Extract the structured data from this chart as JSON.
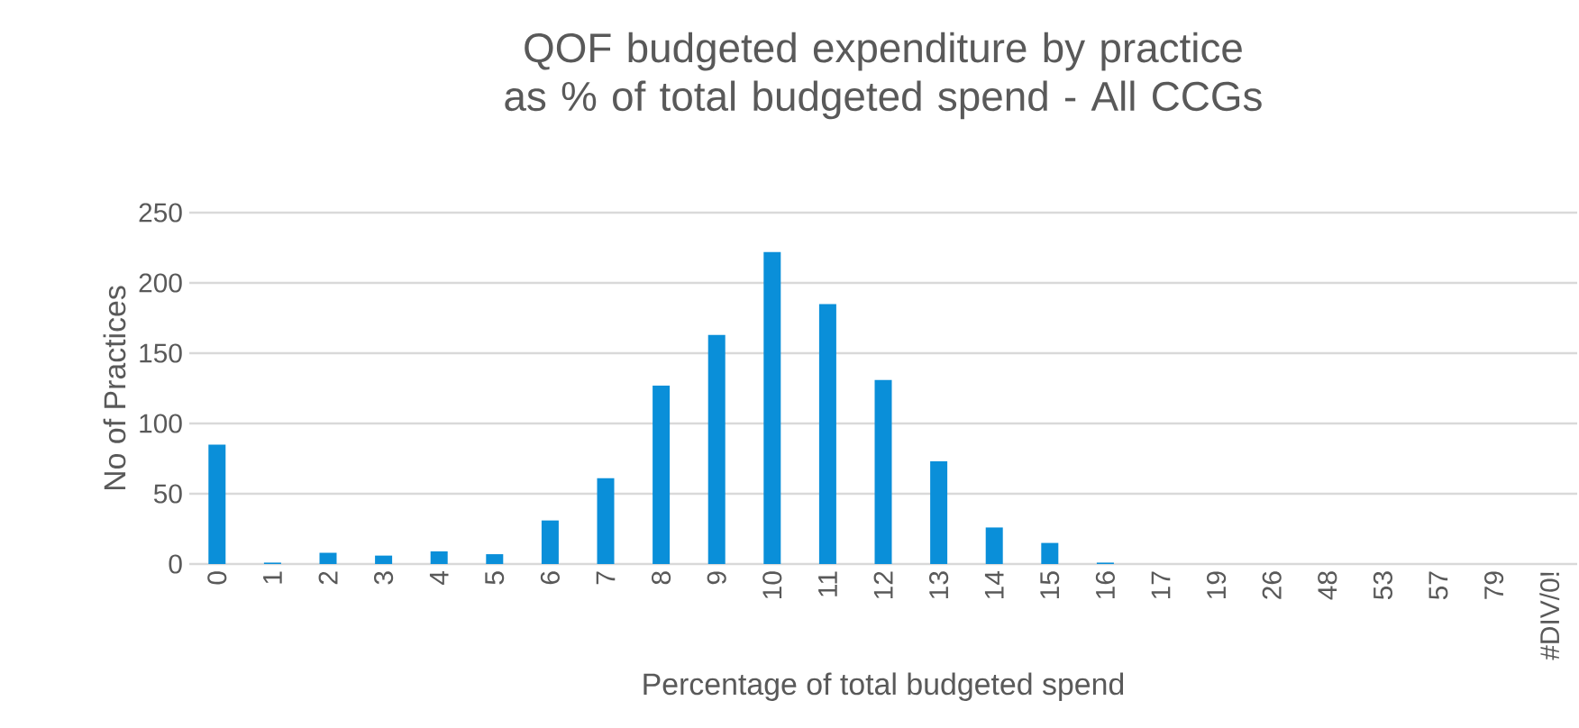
{
  "chart_data": {
    "type": "bar",
    "title": "QOF budgeted expenditure by practice as % of total budgeted spend - All CCGs",
    "xlabel": "Percentage of total budgeted spend",
    "ylabel": "No of Practices",
    "categories": [
      "0",
      "1",
      "2",
      "3",
      "4",
      "5",
      "6",
      "7",
      "8",
      "9",
      "10",
      "11",
      "12",
      "13",
      "14",
      "15",
      "16",
      "17",
      "19",
      "26",
      "48",
      "53",
      "57",
      "79",
      "#DIV/0!"
    ],
    "values": [
      85,
      1,
      8,
      6,
      9,
      7,
      31,
      61,
      127,
      163,
      222,
      185,
      131,
      73,
      26,
      15,
      1,
      0,
      0,
      0,
      0,
      0,
      0,
      0,
      0
    ],
    "color": "#0a8fd9",
    "ylim": [
      0,
      250
    ],
    "yticks": [
      0,
      50,
      100,
      150,
      200,
      250
    ],
    "grid": "y"
  }
}
